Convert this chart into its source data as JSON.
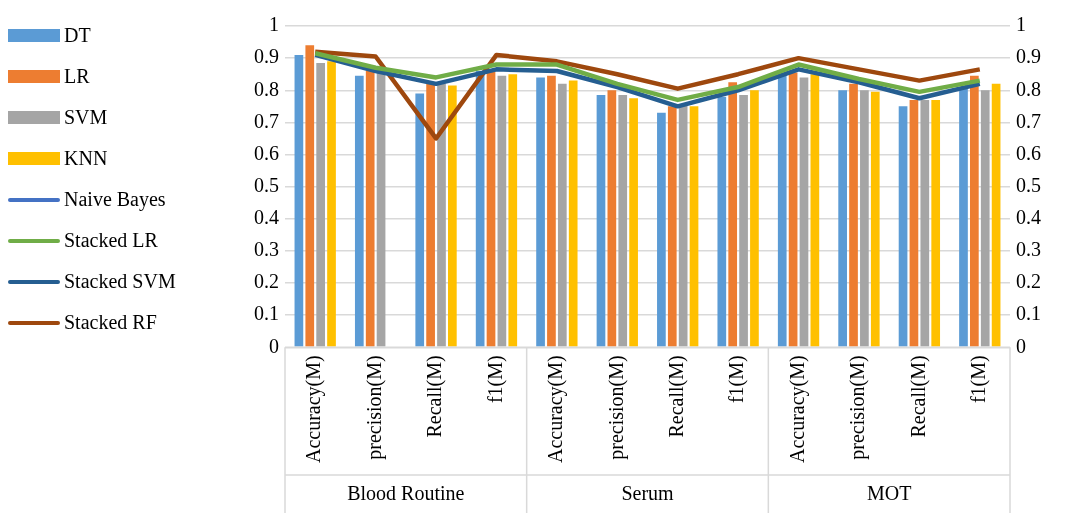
{
  "chart_data": {
    "type": "bar",
    "categories": [
      "Accuracy(M)",
      "precision(M)",
      "Recall(M)",
      "f1(M)",
      "Accuracy(M)",
      "precision(M)",
      "Recall(M)",
      "f1(M)",
      "Accuracy(M)",
      "precision(M)",
      "Recall(M)",
      "f1(M)"
    ],
    "series": [
      {
        "name": "DT",
        "color": "#5b9bd5",
        "values": [
          0.91,
          0.845,
          0.79,
          0.86,
          0.84,
          0.785,
          0.73,
          0.78,
          0.85,
          0.8,
          0.75,
          0.81
        ]
      },
      {
        "name": "LR",
        "color": "#ed7d31",
        "values": [
          0.94,
          0.86,
          0.82,
          0.86,
          0.845,
          0.8,
          0.75,
          0.825,
          0.855,
          0.82,
          0.77,
          0.845
        ]
      },
      {
        "name": "SVM",
        "color": "#a5a5a5",
        "values": [
          0.885,
          0.86,
          0.82,
          0.845,
          0.82,
          0.785,
          0.755,
          0.785,
          0.84,
          0.8,
          0.77,
          0.8
        ]
      },
      {
        "name": "KNN",
        "color": "#ffc000",
        "values": [
          0.89,
          null,
          0.815,
          0.85,
          0.83,
          0.775,
          0.75,
          0.8,
          0.85,
          0.795,
          0.77,
          0.82
        ]
      },
      {
        "name": "Naive Bayes",
        "color": "#4472c4",
        "type": "line",
        "values": [
          null,
          null,
          null,
          null,
          null,
          null,
          null,
          null,
          null,
          null,
          null,
          null
        ]
      },
      {
        "name": "Stacked LR",
        "color": "#70ad47",
        "type": "line",
        "values": [
          0.915,
          0.87,
          0.84,
          0.88,
          0.88,
          0.82,
          0.77,
          0.81,
          0.88,
          0.835,
          0.795,
          0.83
        ]
      },
      {
        "name": "Stacked SVM",
        "color": "#255e91",
        "type": "line",
        "values": [
          0.91,
          0.86,
          0.82,
          0.865,
          0.86,
          0.81,
          0.75,
          0.8,
          0.865,
          0.825,
          0.775,
          0.82
        ]
      },
      {
        "name": "Stacked RF",
        "color": "#9e480e",
        "type": "line",
        "values": [
          0.92,
          0.905,
          0.65,
          0.91,
          0.89,
          0.85,
          0.805,
          0.85,
          0.9,
          0.865,
          0.83,
          0.865
        ]
      }
    ],
    "ylim": [
      0,
      1
    ],
    "yticks": [
      0,
      0.1,
      0.2,
      0.3,
      0.4,
      0.5,
      0.6,
      0.7,
      0.8,
      0.9,
      1
    ],
    "y2lim": [
      0,
      1
    ],
    "y2ticks": [
      0,
      0.1,
      0.2,
      0.3,
      0.4,
      0.5,
      0.6,
      0.7,
      0.8,
      0.9,
      1
    ],
    "grid": "y",
    "legend": "left",
    "marker": "none",
    "annotations": [
      "Blood Routine",
      "Serum",
      "MOT"
    ]
  }
}
